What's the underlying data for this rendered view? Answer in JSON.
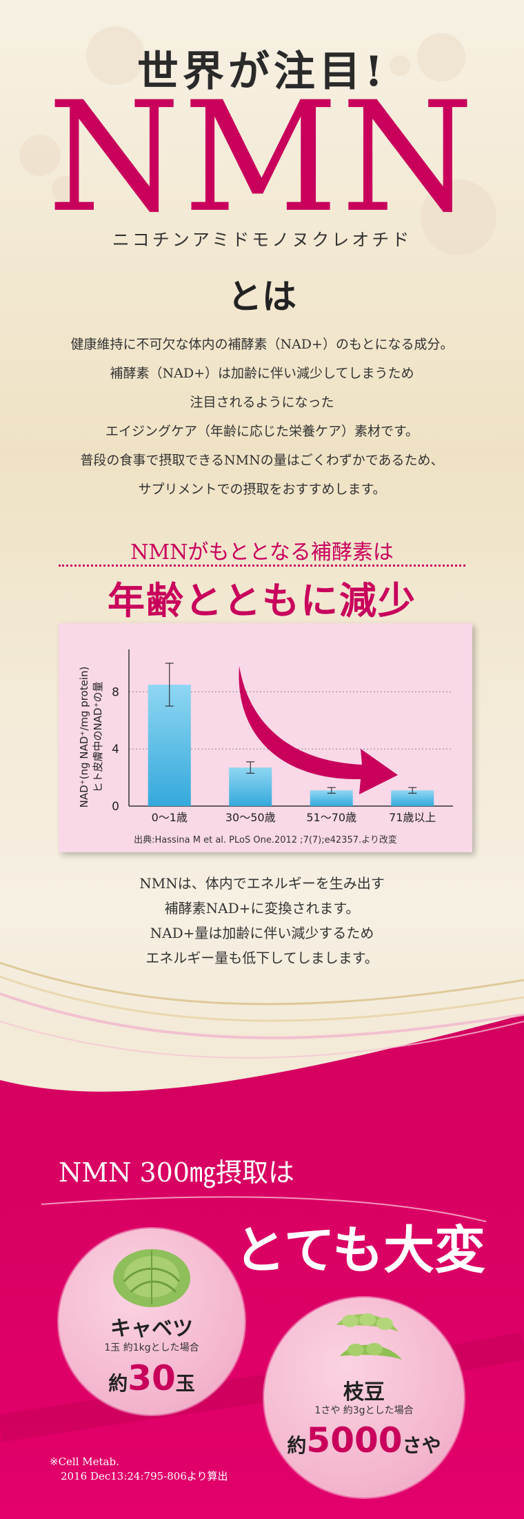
{
  "hero": {
    "kicker": "世界が注目!",
    "title": "NMN",
    "reading": "ニコチンアミドモノヌクレオチド",
    "toha": "とは"
  },
  "intro": {
    "lines": [
      "健康維持に不可欠な体内の補酵素（NAD+）のもとになる成分。",
      "補酵素（NAD+）は加齢に伴い減少してしまうため",
      "注目されるようになった",
      "エイジングケア（年齢に応じた栄養ケア）素材です。",
      "普段の食事で摂取できるNMNの量はごくわずかであるため、",
      "サプリメントでの摂取をおすすめします。"
    ]
  },
  "section": {
    "kicker": "NMNがもととなる補酵素は",
    "title": "年齢とともに減少"
  },
  "chart_data": {
    "type": "bar",
    "categories": [
      "0〜1歳",
      "30〜50歳",
      "51〜70歳",
      "71歳以上"
    ],
    "values": [
      8.5,
      2.7,
      1.1,
      1.1
    ],
    "errors": [
      1.5,
      0.4,
      0.2,
      0.2
    ],
    "ylabel_line1": "NAD⁺(ng NAD⁺/mg protein)",
    "ylabel_line2": "ヒト皮膚中のNAD⁺の量",
    "yticks": [
      0,
      4,
      8
    ],
    "ylim": [
      0,
      10
    ],
    "source": "出典:Hassina M et al. PLoS One.2012 ;7(7);e42357.より改変",
    "bar_color_top": "#8fd6f2",
    "bar_color_bottom": "#35a9dc",
    "arrow_color": "#c8005c"
  },
  "mid": {
    "lines": [
      "NMNは、体内でエネルギーを生み出す",
      "補酵素NAD+に変換されます。",
      "NAD+量は加齢に伴い減少するため",
      "エネルギー量も低下してしまします。"
    ]
  },
  "intake": {
    "headline": "NMN 300㎎摂取は",
    "emphasis": "とても大変"
  },
  "foods": [
    {
      "name": "キャベツ",
      "note": "1玉 約1kgとした場合",
      "prefix": "約",
      "amount": "30",
      "unit": "玉",
      "icon": "cabbage-icon"
    },
    {
      "name": "枝豆",
      "note": "1さや 約3gとした場合",
      "prefix": "約",
      "amount": "5000",
      "unit": "さや",
      "icon": "edamame-icon"
    }
  ],
  "footnote": {
    "line1": "※Cell Metab.",
    "line2": "2016 Dec13:24:795-806より算出"
  },
  "colors": {
    "accent": "#c8005c",
    "cream": "#f3ead7"
  }
}
